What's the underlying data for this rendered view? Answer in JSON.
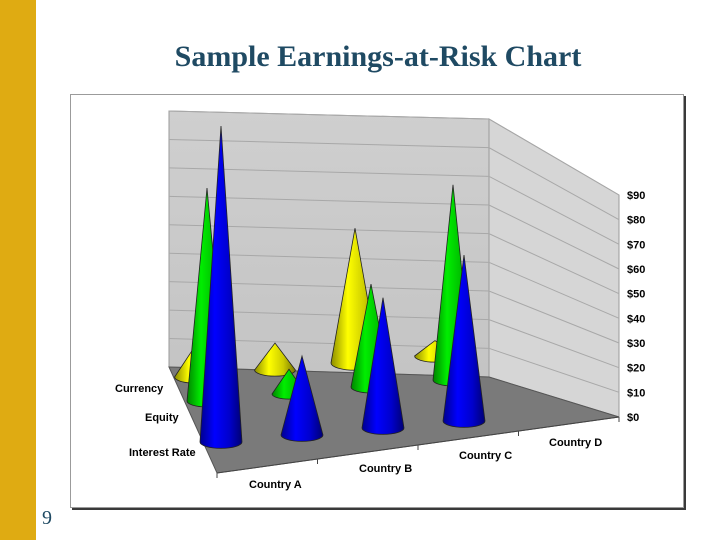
{
  "slide": {
    "title": "Sample Earnings-at-Risk Chart",
    "page_number": "9",
    "sidebar_color": "#dfab12",
    "title_color": "#1f4a63"
  },
  "chart_data": {
    "type": "3d-cone",
    "title": "Sample Earnings-at-Risk Chart",
    "categories": [
      "Country A",
      "Country B",
      "Country C",
      "Country D"
    ],
    "ylim": [
      0,
      90
    ],
    "yticks": [
      "$0",
      "$10",
      "$20",
      "$30",
      "$40",
      "$50",
      "$60",
      "$70",
      "$80",
      "$90"
    ],
    "ytick_values": [
      0,
      10,
      20,
      30,
      40,
      50,
      60,
      70,
      80,
      90
    ],
    "series": [
      {
        "name": "Currency",
        "color": "#ffff00",
        "values": [
          8,
          7,
          35,
          4
        ]
      },
      {
        "name": "Equity",
        "color": "#00ee00",
        "values": [
          60,
          7,
          29,
          55
        ]
      },
      {
        "name": "Interest Rate",
        "color": "#0000ff",
        "values": [
          80,
          20,
          33,
          42
        ]
      }
    ],
    "grid": true,
    "legend": "none"
  }
}
